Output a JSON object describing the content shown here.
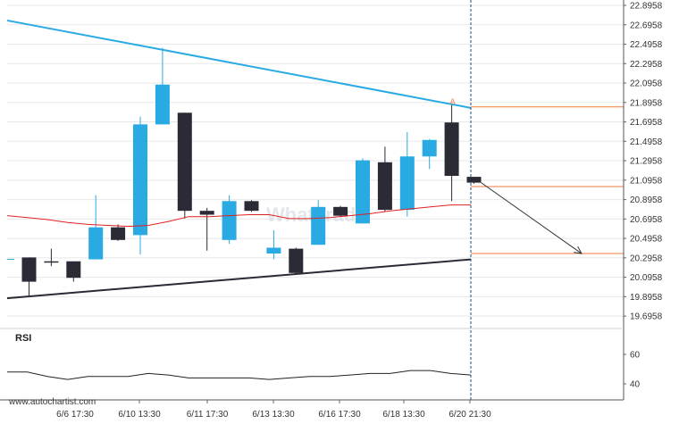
{
  "watermark": "WhatTrade",
  "credit": "www.autochartist.com",
  "rsi_label": "RSI",
  "chart_data": {
    "type": "candlestick",
    "price_axis": {
      "ylim": [
        19.5958,
        22.8958
      ],
      "ticks": [
        "22.8958",
        "22.6958",
        "22.4958",
        "22.2958",
        "22.0958",
        "21.8958",
        "21.6958",
        "21.4958",
        "21.2958",
        "21.0958",
        "20.8958",
        "20.6958",
        "20.4958",
        "20.2958",
        "20.0958",
        "19.8958",
        "19.6958"
      ]
    },
    "x_ticks": [
      "6/6 17:30",
      "6/10 13:30",
      "6/11 17:30",
      "6/13 13:30",
      "6/16 17:30",
      "6/18 13:30",
      "6/20 21:30"
    ],
    "candles": [
      {
        "o": 20.05,
        "h": 20.3,
        "l": 19.9,
        "c": 20.3,
        "color": "dark"
      },
      {
        "o": 20.26,
        "h": 20.39,
        "l": 20.21,
        "c": 20.26,
        "color": "dark"
      },
      {
        "o": 20.09,
        "h": 20.26,
        "l": 20.05,
        "c": 20.26,
        "color": "dark"
      },
      {
        "o": 20.28,
        "h": 20.94,
        "l": 20.28,
        "c": 20.61,
        "color": "blue"
      },
      {
        "o": 20.61,
        "h": 20.64,
        "l": 20.47,
        "c": 20.48,
        "color": "dark"
      },
      {
        "o": 20.53,
        "h": 21.75,
        "l": 20.33,
        "c": 21.67,
        "color": "blue"
      },
      {
        "o": 21.67,
        "h": 22.46,
        "l": 21.67,
        "c": 22.08,
        "color": "blue"
      },
      {
        "o": 21.79,
        "h": 21.79,
        "l": 20.7,
        "c": 20.78,
        "color": "dark"
      },
      {
        "o": 20.78,
        "h": 20.81,
        "l": 20.37,
        "c": 20.74,
        "color": "dark"
      },
      {
        "o": 20.48,
        "h": 20.94,
        "l": 20.44,
        "c": 20.88,
        "color": "blue"
      },
      {
        "o": 20.88,
        "h": 20.89,
        "l": 20.77,
        "c": 20.78,
        "color": "dark"
      },
      {
        "o": 20.34,
        "h": 20.58,
        "l": 20.28,
        "c": 20.4,
        "color": "blue"
      },
      {
        "o": 20.39,
        "h": 20.4,
        "l": 20.12,
        "c": 20.14,
        "color": "dark"
      },
      {
        "o": 20.43,
        "h": 20.89,
        "l": 20.43,
        "c": 20.82,
        "color": "blue"
      },
      {
        "o": 20.82,
        "h": 20.83,
        "l": 20.72,
        "c": 20.73,
        "color": "dark"
      },
      {
        "o": 20.65,
        "h": 21.32,
        "l": 20.65,
        "c": 21.3,
        "color": "blue"
      },
      {
        "o": 21.28,
        "h": 21.44,
        "l": 20.77,
        "c": 20.79,
        "color": "dark"
      },
      {
        "o": 20.79,
        "h": 21.59,
        "l": 20.72,
        "c": 21.34,
        "color": "blue"
      },
      {
        "o": 21.34,
        "h": 21.52,
        "l": 21.21,
        "c": 21.51,
        "color": "blue"
      },
      {
        "o": 21.69,
        "h": 21.87,
        "l": 20.88,
        "c": 21.14,
        "color": "dark"
      },
      {
        "o": 21.13,
        "h": 21.13,
        "l": 21.06,
        "c": 21.07,
        "color": "dark"
      }
    ],
    "moving_average": [
      20.73,
      20.71,
      20.69,
      20.66,
      20.64,
      20.63,
      20.62,
      20.63,
      20.67,
      20.72,
      20.72,
      20.73,
      20.74,
      20.74,
      20.7,
      20.7,
      20.71,
      20.73,
      20.75,
      20.78,
      20.8,
      20.82,
      20.84,
      20.84
    ],
    "ma_step_after_candle": 1,
    "resistance_line": {
      "start": 22.74,
      "end": 21.84
    },
    "support_line": {
      "start": 19.88,
      "end": 20.28
    },
    "target_level": 20.34,
    "current_level": 21.03,
    "pattern_level": 21.85,
    "pattern_marker": "A",
    "forecast_arrow": {
      "from_candle": 20,
      "from": 21.07,
      "to_candle": 25,
      "to": 20.34
    },
    "rsi": {
      "ticks": [
        "60",
        "40"
      ],
      "ylim": [
        38,
        66
      ],
      "values": [
        48,
        48,
        45,
        43,
        45,
        45,
        45,
        47,
        46,
        44,
        44,
        44,
        44,
        43,
        44,
        45,
        45,
        46,
        47,
        47,
        49,
        49,
        47,
        46
      ]
    },
    "colors": {
      "bull": "#29aae3",
      "bear": "#2b2b35",
      "resistance": "#29aae3",
      "support": "#2b2b35",
      "ma": "#e02020",
      "levels": "#f07a3c",
      "arrow": "#333333",
      "divider": "#1a4d7a",
      "grid": "#e8e8e8"
    }
  }
}
